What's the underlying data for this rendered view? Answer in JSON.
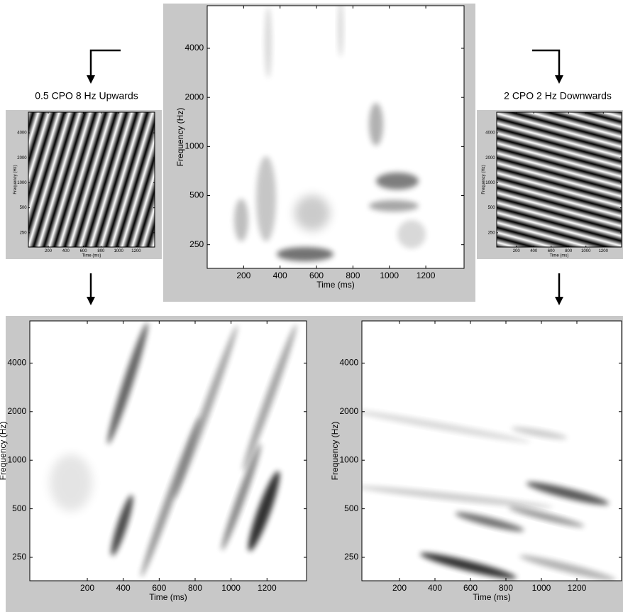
{
  "panels": {
    "spectrogram": {
      "xlabel": "Time (ms)",
      "ylabel": "Frequency (Hz)",
      "xticks": [
        200,
        400,
        600,
        800,
        1000,
        1200
      ],
      "yticks": [
        250,
        500,
        1000,
        2000,
        4000
      ]
    },
    "left_filter": {
      "title": "0.5 CPO 8 Hz Upwards",
      "xlabel": "Time (ms)",
      "ylabel": "Frequency (Hz)",
      "xticks": [
        200,
        400,
        600,
        800,
        1000,
        1200
      ],
      "yticks": [
        250,
        500,
        1000,
        2000,
        4000
      ]
    },
    "right_filter": {
      "title": "2 CPO 2 Hz Downwards",
      "xlabel": "Time (ms)",
      "ylabel": "Frequency (Hz)",
      "xticks": [
        200,
        400,
        600,
        800,
        1000,
        1200
      ],
      "yticks": [
        250,
        500,
        1000,
        2000,
        4000
      ]
    },
    "left_output": {
      "xlabel": "Time (ms)",
      "ylabel": "Frequency (Hz)",
      "xticks": [
        200,
        400,
        600,
        800,
        1000,
        1200
      ],
      "yticks": [
        250,
        500,
        1000,
        2000,
        4000
      ]
    },
    "right_output": {
      "xlabel": "Time (ms)",
      "ylabel": "Frequency (Hz)",
      "xticks": [
        200,
        400,
        600,
        800,
        1000,
        1200
      ],
      "yticks": [
        250,
        500,
        1000,
        2000,
        4000
      ]
    }
  }
}
